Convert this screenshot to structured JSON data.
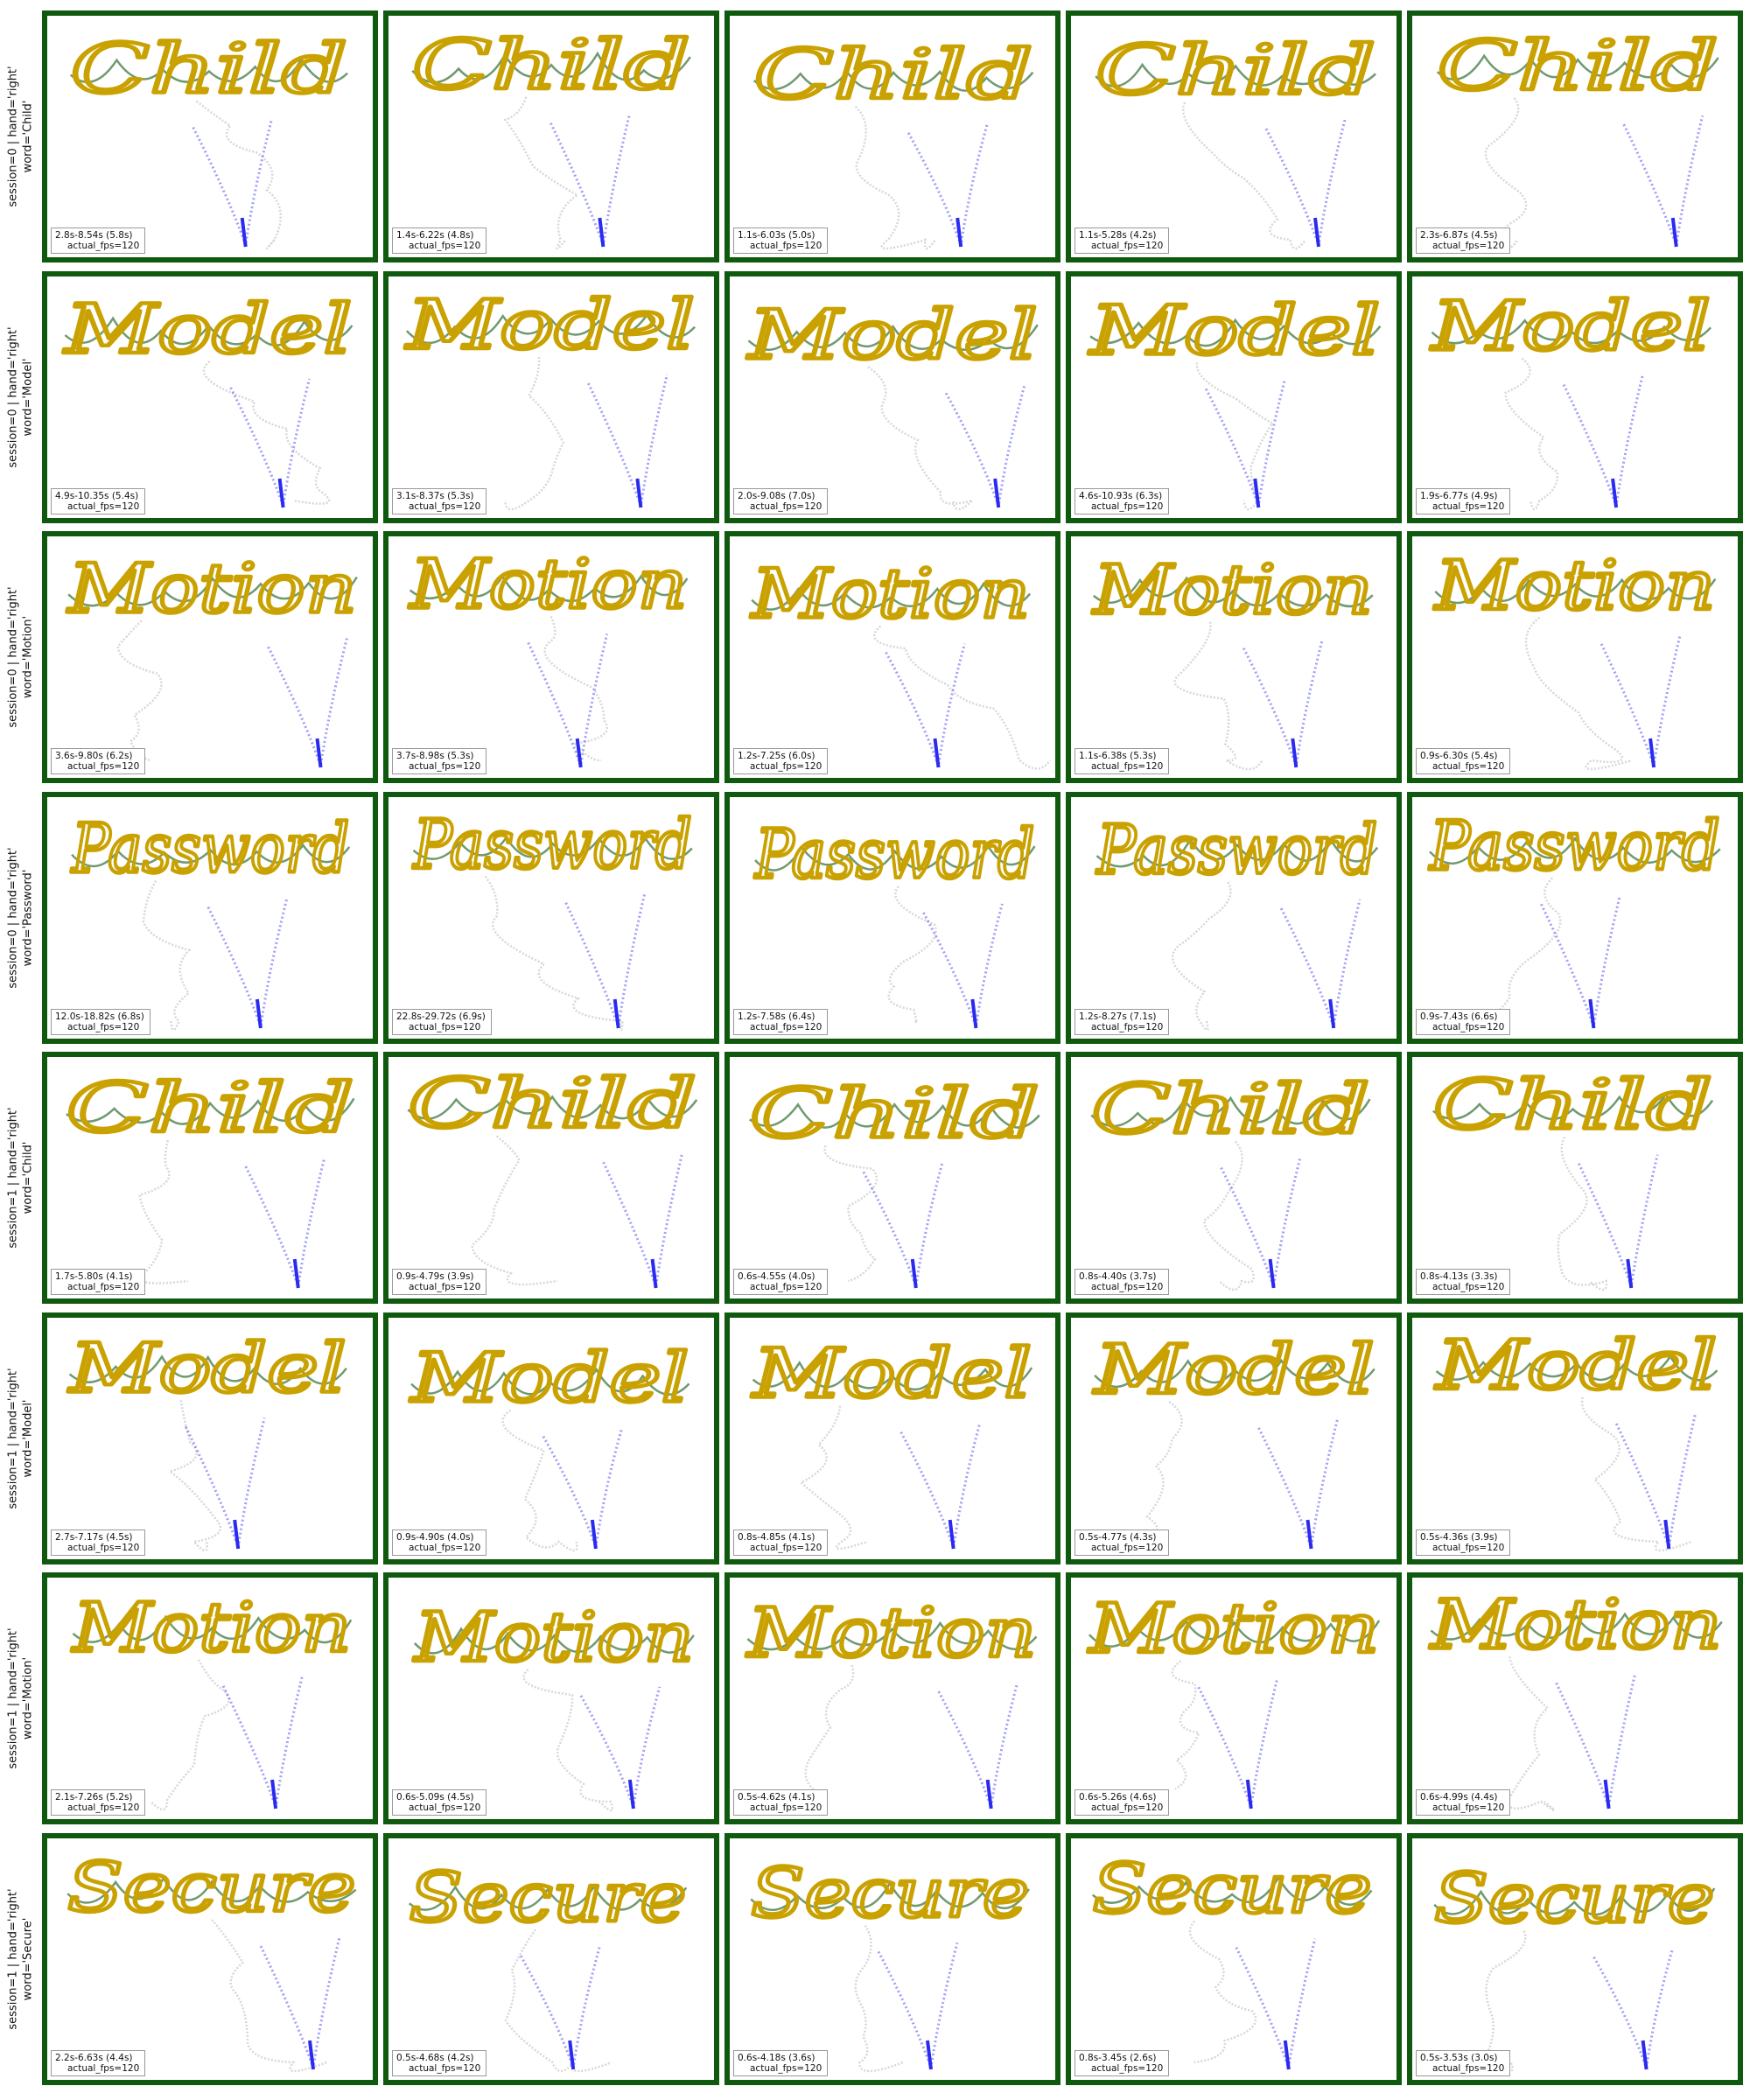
{
  "colors": {
    "border": "#0f5a0f",
    "word_ink": "#c9a100",
    "connector": "#6f9a6f",
    "approach": "#2a2af0",
    "idle": "#8c8c8c",
    "pink": "#e070d8"
  },
  "rows": [
    {
      "label_line1": "session=0 | hand='right'",
      "label_line2": "word='Child'",
      "word": "Child",
      "panels": [
        {
          "time": "2.8s-8.54s (5.8s)",
          "fps": "actual_fps=120"
        },
        {
          "time": "1.4s-6.22s (4.8s)",
          "fps": "actual_fps=120"
        },
        {
          "time": "1.1s-6.03s (5.0s)",
          "fps": "actual_fps=120"
        },
        {
          "time": "1.1s-5.28s (4.2s)",
          "fps": "actual_fps=120"
        },
        {
          "time": "2.3s-6.87s (4.5s)",
          "fps": "actual_fps=120"
        }
      ]
    },
    {
      "label_line1": "session=0 | hand='right'",
      "label_line2": "word='Model'",
      "word": "Model",
      "panels": [
        {
          "time": "4.9s-10.35s (5.4s)",
          "fps": "actual_fps=120"
        },
        {
          "time": "3.1s-8.37s (5.3s)",
          "fps": "actual_fps=120"
        },
        {
          "time": "2.0s-9.08s (7.0s)",
          "fps": "actual_fps=120"
        },
        {
          "time": "4.6s-10.93s (6.3s)",
          "fps": "actual_fps=120"
        },
        {
          "time": "1.9s-6.77s (4.9s)",
          "fps": "actual_fps=120"
        }
      ]
    },
    {
      "label_line1": "session=0 | hand='right'",
      "label_line2": "word='Motion'",
      "word": "Motion",
      "panels": [
        {
          "time": "3.6s-9.80s (6.2s)",
          "fps": "actual_fps=120"
        },
        {
          "time": "3.7s-8.98s (5.3s)",
          "fps": "actual_fps=120"
        },
        {
          "time": "1.2s-7.25s (6.0s)",
          "fps": "actual_fps=120"
        },
        {
          "time": "1.1s-6.38s (5.3s)",
          "fps": "actual_fps=120"
        },
        {
          "time": "0.9s-6.30s (5.4s)",
          "fps": "actual_fps=120"
        }
      ]
    },
    {
      "label_line1": "session=0 | hand='right'",
      "label_line2": "word='Password'",
      "word": "Password",
      "panels": [
        {
          "time": "12.0s-18.82s (6.8s)",
          "fps": "actual_fps=120"
        },
        {
          "time": "22.8s-29.72s (6.9s)",
          "fps": "actual_fps=120"
        },
        {
          "time": "1.2s-7.58s (6.4s)",
          "fps": "actual_fps=120"
        },
        {
          "time": "1.2s-8.27s (7.1s)",
          "fps": "actual_fps=120"
        },
        {
          "time": "0.9s-7.43s (6.6s)",
          "fps": "actual_fps=120"
        }
      ]
    },
    {
      "label_line1": "session=1 | hand='right'",
      "label_line2": "word='Child'",
      "word": "Child",
      "panels": [
        {
          "time": "1.7s-5.80s (4.1s)",
          "fps": "actual_fps=120"
        },
        {
          "time": "0.9s-4.79s (3.9s)",
          "fps": "actual_fps=120"
        },
        {
          "time": "0.6s-4.55s (4.0s)",
          "fps": "actual_fps=120"
        },
        {
          "time": "0.8s-4.40s (3.7s)",
          "fps": "actual_fps=120"
        },
        {
          "time": "0.8s-4.13s (3.3s)",
          "fps": "actual_fps=120"
        }
      ]
    },
    {
      "label_line1": "session=1 | hand='right'",
      "label_line2": "word='Model'",
      "word": "Model",
      "panels": [
        {
          "time": "2.7s-7.17s (4.5s)",
          "fps": "actual_fps=120"
        },
        {
          "time": "0.9s-4.90s (4.0s)",
          "fps": "actual_fps=120"
        },
        {
          "time": "0.8s-4.85s (4.1s)",
          "fps": "actual_fps=120"
        },
        {
          "time": "0.5s-4.77s (4.3s)",
          "fps": "actual_fps=120"
        },
        {
          "time": "0.5s-4.36s (3.9s)",
          "fps": "actual_fps=120"
        }
      ]
    },
    {
      "label_line1": "session=1 | hand='right'",
      "label_line2": "word='Motion'",
      "word": "Motion",
      "panels": [
        {
          "time": "2.1s-7.26s (5.2s)",
          "fps": "actual_fps=120"
        },
        {
          "time": "0.6s-5.09s (4.5s)",
          "fps": "actual_fps=120"
        },
        {
          "time": "0.5s-4.62s (4.1s)",
          "fps": "actual_fps=120"
        },
        {
          "time": "0.6s-5.26s (4.6s)",
          "fps": "actual_fps=120"
        },
        {
          "time": "0.6s-4.99s (4.4s)",
          "fps": "actual_fps=120"
        }
      ]
    },
    {
      "label_line1": "session=1 | hand='right'",
      "label_line2": "word='Secure'",
      "word": "Secure",
      "panels": [
        {
          "time": "2.2s-6.63s (4.4s)",
          "fps": "actual_fps=120"
        },
        {
          "time": "0.5s-4.68s (4.2s)",
          "fps": "actual_fps=120"
        },
        {
          "time": "0.6s-4.18s (3.6s)",
          "fps": "actual_fps=120"
        },
        {
          "time": "0.8s-3.45s (2.6s)",
          "fps": "actual_fps=120"
        },
        {
          "time": "0.5s-3.53s (3.0s)",
          "fps": "actual_fps=120"
        }
      ]
    }
  ]
}
